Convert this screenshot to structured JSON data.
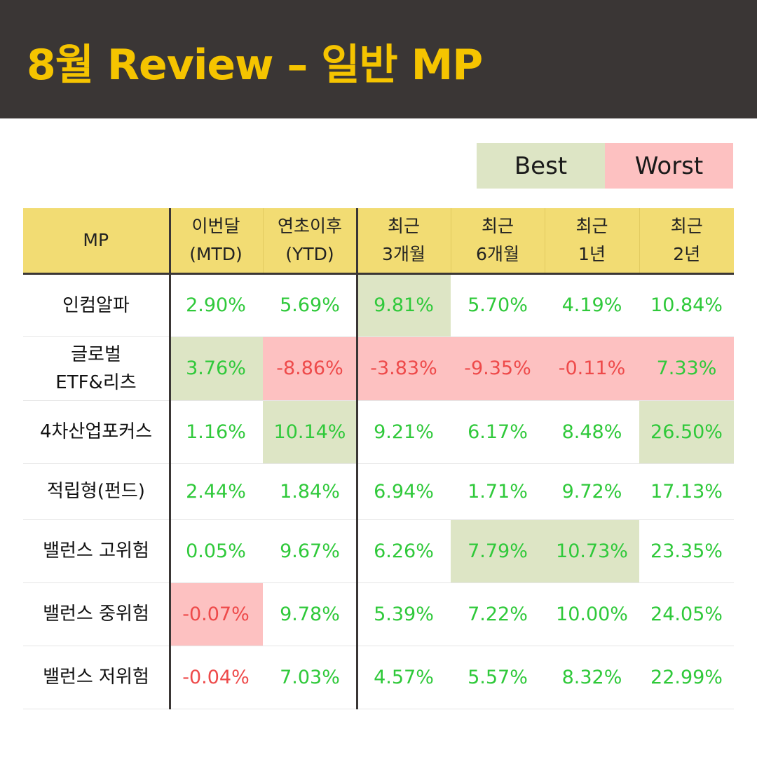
{
  "title": "8월 Review – 일반 MP",
  "legend": {
    "best": "Best",
    "worst": "Worst"
  },
  "colors": {
    "title": "#f5c400",
    "header_bg": "#3a3635",
    "table_header": "#f2dc73",
    "best": "#dde5c5",
    "worst": "#fdc1c1",
    "positive": "#2fc93a",
    "negative": "#ee4a4a"
  },
  "chart_data": {
    "type": "table",
    "columns": [
      {
        "lines": [
          "MP"
        ]
      },
      {
        "lines": [
          "이번달",
          "(MTD)"
        ]
      },
      {
        "lines": [
          "연초이후",
          "(YTD)"
        ]
      },
      {
        "lines": [
          "최근",
          "3개월"
        ]
      },
      {
        "lines": [
          "최근",
          "6개월"
        ]
      },
      {
        "lines": [
          "최근",
          "1년"
        ]
      },
      {
        "lines": [
          "최근",
          "2년"
        ]
      }
    ],
    "rows": [
      {
        "name": [
          "인컴알파"
        ],
        "values": [
          "2.90%",
          "5.69%",
          "9.81%",
          "5.70%",
          "4.19%",
          "10.84%"
        ],
        "highlight": [
          "",
          "",
          "best",
          "",
          "",
          ""
        ]
      },
      {
        "name": [
          "글로벌",
          "ETF&리츠"
        ],
        "values": [
          "3.76%",
          "-8.86%",
          "-3.83%",
          "-9.35%",
          "-0.11%",
          "7.33%"
        ],
        "highlight": [
          "best",
          "worst",
          "worst",
          "worst",
          "worst",
          "worst"
        ]
      },
      {
        "name": [
          "4차산업포커스"
        ],
        "values": [
          "1.16%",
          "10.14%",
          "9.21%",
          "6.17%",
          "8.48%",
          "26.50%"
        ],
        "highlight": [
          "",
          "best",
          "",
          "",
          "",
          "best"
        ]
      },
      {
        "name": [
          "적립형(펀드)"
        ],
        "values": [
          "2.44%",
          "1.84%",
          "6.94%",
          "1.71%",
          "9.72%",
          "17.13%"
        ],
        "highlight": [
          "",
          "",
          "",
          "",
          "",
          ""
        ]
      },
      {
        "name": [
          "밸런스 고위험"
        ],
        "values": [
          "0.05%",
          "9.67%",
          "6.26%",
          "7.79%",
          "10.73%",
          "23.35%"
        ],
        "highlight": [
          "",
          "",
          "",
          "best",
          "best",
          ""
        ]
      },
      {
        "name": [
          "밸런스 중위험"
        ],
        "values": [
          "-0.07%",
          "9.78%",
          "5.39%",
          "7.22%",
          "10.00%",
          "24.05%"
        ],
        "highlight": [
          "worst",
          "",
          "",
          "",
          "",
          ""
        ]
      },
      {
        "name": [
          "밸런스 저위험"
        ],
        "values": [
          "-0.04%",
          "7.03%",
          "4.57%",
          "5.57%",
          "8.32%",
          "22.99%"
        ],
        "highlight": [
          "",
          "",
          "",
          "",
          "",
          ""
        ]
      }
    ]
  }
}
